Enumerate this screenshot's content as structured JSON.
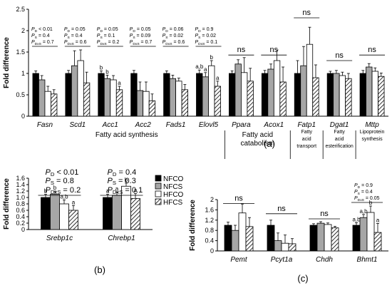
{
  "chart_data": [
    {
      "panel": "(a)",
      "type": "bar",
      "ylabel": "Fold difference",
      "ylim": [
        0,
        2.5
      ],
      "yticks": [
        "0",
        "0.5",
        "1",
        "1.5",
        "2",
        "2.5"
      ],
      "categories": [
        "Fasn",
        "Scd1",
        "Acc1",
        "Acc2",
        "Fads1",
        "Elovl5",
        "Ppara",
        "Acox1",
        "Fatp1",
        "Dgat1",
        "Mttp"
      ],
      "series": [
        {
          "name": "NFCO",
          "values": [
            1.0,
            1.0,
            1.0,
            1.0,
            1.0,
            1.0,
            1.0,
            1.0,
            1.0,
            1.0,
            1.0
          ],
          "errors": [
            0.06,
            0.07,
            0.06,
            0.07,
            0.06,
            0.08,
            0.06,
            0.07,
            0.3,
            0.05,
            0.07
          ],
          "sig": [
            "",
            "",
            "b",
            "",
            "",
            "a,b",
            "",
            "",
            "",
            "",
            ""
          ]
        },
        {
          "name": "NFCS",
          "values": [
            0.85,
            1.18,
            0.88,
            0.6,
            0.88,
            0.92,
            1.22,
            1.1,
            1.18,
            1.0,
            1.15
          ],
          "errors": [
            0.1,
            0.35,
            0.08,
            0.2,
            0.08,
            0.1,
            0.1,
            0.12,
            0.45,
            0.07,
            0.08
          ],
          "sig": [
            "",
            "",
            "b",
            "",
            "",
            "a",
            "",
            "",
            "",
            "",
            ""
          ]
        },
        {
          "name": "HFCO",
          "values": [
            0.58,
            1.3,
            0.85,
            0.58,
            0.82,
            1.18,
            1.02,
            1.3,
            1.68,
            0.95,
            1.05
          ],
          "errors": [
            0.12,
            0.25,
            0.1,
            0.22,
            0.07,
            0.12,
            0.35,
            0.25,
            0.4,
            0.08,
            0.08
          ],
          "sig": [
            "",
            "",
            "",
            "",
            "",
            "b",
            "",
            "",
            "",
            "",
            ""
          ]
        },
        {
          "name": "HFCS",
          "values": [
            0.52,
            0.78,
            0.62,
            0.36,
            0.62,
            0.7,
            0.82,
            0.8,
            0.9,
            0.88,
            0.93
          ],
          "errors": [
            0.1,
            0.25,
            0.08,
            0.16,
            0.12,
            0.12,
            0.3,
            0.35,
            0.3,
            0.12,
            0.08
          ],
          "sig": [
            "",
            "",
            "a",
            "",
            "",
            "a",
            "",
            "",
            "",
            "",
            ""
          ]
        }
      ],
      "annotations": [
        {
          "genes": "Fasn",
          "lines": [
            "P",
            "D",
            " < 0.01",
            "P",
            "S",
            " = 0.4",
            "P",
            "DxS",
            " = 0.7"
          ]
        },
        {
          "genes": "Scd1",
          "lines": [
            "P",
            "D",
            " = 0.05",
            "P",
            "S",
            " = 0.4",
            "P",
            "DxS",
            " = 0.6"
          ]
        },
        {
          "genes": "Acc1",
          "lines": [
            "P",
            "D",
            " = 0.05",
            "P",
            "S",
            " = 0.1",
            "P",
            "DxS",
            " = 0.2"
          ]
        },
        {
          "genes": "Acc2",
          "lines": [
            "P",
            "D",
            " = 0.05",
            "P",
            "S",
            " = 0.09",
            "P",
            "DxS",
            " = 0.7"
          ]
        },
        {
          "genes": "Fads1",
          "lines": [
            "P",
            "D",
            " = 0.06",
            "P",
            "S",
            " = 0.02",
            "P",
            "DxS",
            " = 0.6"
          ]
        },
        {
          "genes": "Elovl5",
          "lines": [
            "P",
            "D",
            " = 0.9",
            "P",
            "S",
            " = 0.02",
            "P",
            "DxS",
            " = 0.1"
          ]
        }
      ],
      "ns_labels": [
        "ns",
        "ns",
        "ns",
        "ns",
        "ns"
      ],
      "groups": [
        {
          "label": "Fatty acid synthesis"
        },
        {
          "label": "Fatty acid catabolism"
        },
        {
          "label": "Fatty acid transport"
        },
        {
          "label": "Fatty acid esterification"
        },
        {
          "label": "Lipoprotein synthesis"
        }
      ]
    },
    {
      "panel": "(b)",
      "type": "bar",
      "ylabel": "Fold difference",
      "ylim": [
        0,
        1.6
      ],
      "yticks": [
        "0",
        "0.2",
        "0.4",
        "0.6",
        "0.8",
        "1.0",
        "1.2",
        "1.4",
        "1.6"
      ],
      "categories": [
        "Srebp1c",
        "Chrebp1"
      ],
      "series": [
        {
          "name": "NFCO",
          "values": [
            1.0,
            1.0
          ],
          "errors": [
            0.1,
            0.1
          ],
          "sig": [
            "b",
            "a"
          ]
        },
        {
          "name": "NFCS",
          "values": [
            1.1,
            1.07
          ],
          "errors": [
            0.1,
            0.1
          ],
          "sig": [
            "b",
            "a"
          ]
        },
        {
          "name": "HFCO",
          "values": [
            0.8,
            1.35
          ],
          "errors": [
            0.12,
            0.1
          ],
          "sig": [
            "a,b",
            "b"
          ]
        },
        {
          "name": "HFCS",
          "values": [
            0.6,
            0.97
          ],
          "errors": [
            0.15,
            0.15
          ],
          "sig": [
            "a",
            "a"
          ]
        }
      ],
      "stats": [
        {
          "gene": "Srebp1c",
          "pd": " < 0.01",
          "ps": " = 0.8",
          "pdxs": " = 0.2"
        },
        {
          "gene": "Chrebp1",
          "pd": " = 0.4",
          "ps": " = 0.3",
          "pdxs": " = 0.1"
        }
      ]
    },
    {
      "panel": "(c)",
      "type": "bar",
      "ylabel": "Fold difference",
      "ylim": [
        0,
        2.0
      ],
      "yticks": [
        "0",
        "0.4",
        "0.8",
        "1.2",
        "1.6",
        "2"
      ],
      "categories": [
        "Pemt",
        "Pcyt1a",
        "Chdh",
        "Bhmt1"
      ],
      "series": [
        {
          "name": "NFCO",
          "values": [
            1.0,
            1.0,
            1.0,
            1.0
          ],
          "errors": [
            0.12,
            0.2,
            0.06,
            0.1
          ],
          "sig": [
            "",
            "",
            "",
            "a,b"
          ]
        },
        {
          "name": "NFCS",
          "values": [
            0.8,
            0.4,
            1.08,
            1.3
          ],
          "errors": [
            0.2,
            0.3,
            0.06,
            0.12
          ],
          "sig": [
            "",
            "",
            "",
            "a,b"
          ]
        },
        {
          "name": "HFCO",
          "values": [
            1.48,
            0.3,
            1.03,
            1.5
          ],
          "errors": [
            0.35,
            0.32,
            0.06,
            0.25
          ],
          "sig": [
            "",
            "",
            "",
            "b"
          ]
        },
        {
          "name": "HFCS",
          "values": [
            0.95,
            0.28,
            0.9,
            0.72
          ],
          "errors": [
            0.35,
            0.2,
            0.06,
            0.35
          ],
          "sig": [
            "",
            "",
            "",
            "a"
          ]
        }
      ],
      "ns_labels": [
        "ns",
        "ns",
        "ns"
      ],
      "stats": {
        "pd": " = 0.9",
        "ps": " = 0.4",
        "pdxs": " = 0.05"
      }
    }
  ],
  "legend": [
    "NFCO",
    "NFCS",
    "HFCO",
    "HFCS"
  ],
  "colors": {
    "NFCO": "#000000",
    "NFCS": "#a6a6a6",
    "HFCO": "#ffffff",
    "HFCS": "hatch"
  }
}
